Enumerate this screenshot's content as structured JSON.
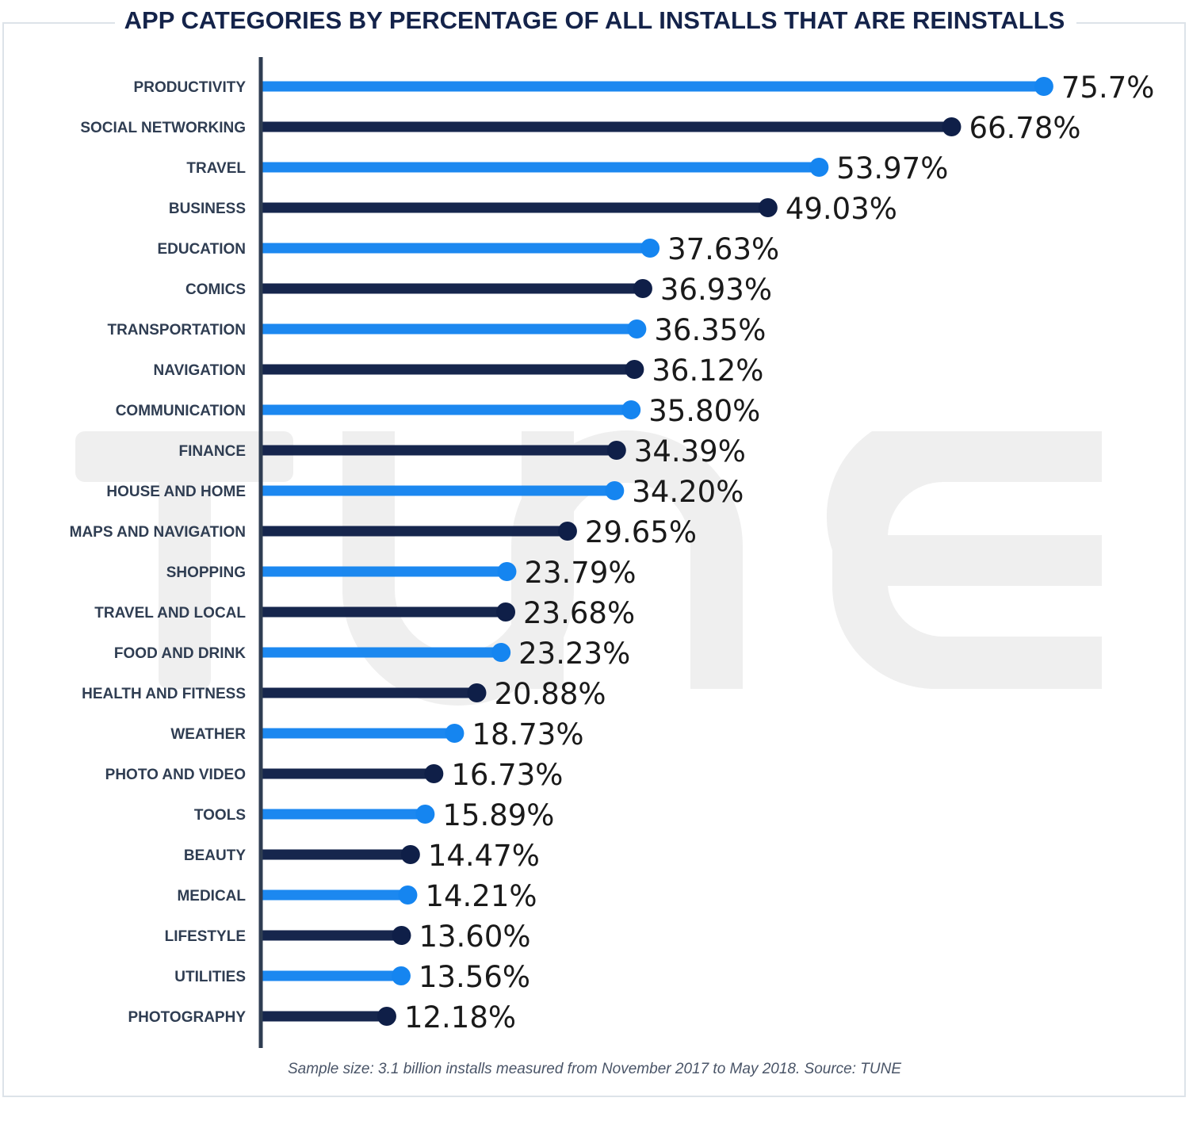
{
  "title": "APP CATEGORIES BY PERCENTAGE OF ALL INSTALLS THAT ARE REINSTALLS",
  "footnote": "Sample size: 3.1 billion installs measured from November 2017 to May 2018. Source: TUNE",
  "watermark": "TUNE",
  "colors": {
    "light": "#1585f0",
    "dark": "#0f1f48",
    "axis": "#2f3d52",
    "watermark": "#efefef"
  },
  "chart_data": {
    "type": "bar",
    "orientation": "horizontal",
    "title": "APP CATEGORIES BY PERCENTAGE OF ALL INSTALLS THAT ARE REINSTALLS",
    "xlabel": "",
    "ylabel": "",
    "xlim": [
      0,
      80
    ],
    "grid": false,
    "categories": [
      "PRODUCTIVITY",
      "SOCIAL NETWORKING",
      "TRAVEL",
      "BUSINESS",
      "EDUCATION",
      "COMICS",
      "TRANSPORTATION",
      "NAVIGATION",
      "COMMUNICATION",
      "FINANCE",
      "HOUSE AND HOME",
      "MAPS AND NAVIGATION",
      "SHOPPING",
      "TRAVEL AND LOCAL",
      "FOOD AND DRINK",
      "HEALTH AND FITNESS",
      "WEATHER",
      "PHOTO AND VIDEO",
      "TOOLS",
      "BEAUTY",
      "MEDICAL",
      "LIFESTYLE",
      "UTILITIES",
      "PHOTOGRAPHY"
    ],
    "values": [
      75.7,
      66.78,
      53.97,
      49.03,
      37.63,
      36.93,
      36.35,
      36.12,
      35.8,
      34.39,
      34.2,
      29.65,
      23.79,
      23.68,
      23.23,
      20.88,
      18.73,
      16.73,
      15.89,
      14.47,
      14.21,
      13.6,
      13.56,
      12.18
    ],
    "value_labels": [
      "75.7%",
      "66.78%",
      "53.97%",
      "49.03%",
      "37.63%",
      "36.93%",
      "36.35%",
      "36.12%",
      "35.80%",
      "34.39%",
      "34.20%",
      "29.65%",
      "23.79%",
      "23.68%",
      "23.23%",
      "20.88%",
      "18.73%",
      "16.73%",
      "15.89%",
      "14.47%",
      "14.21%",
      "13.60%",
      "13.56%",
      "12.18%"
    ]
  }
}
